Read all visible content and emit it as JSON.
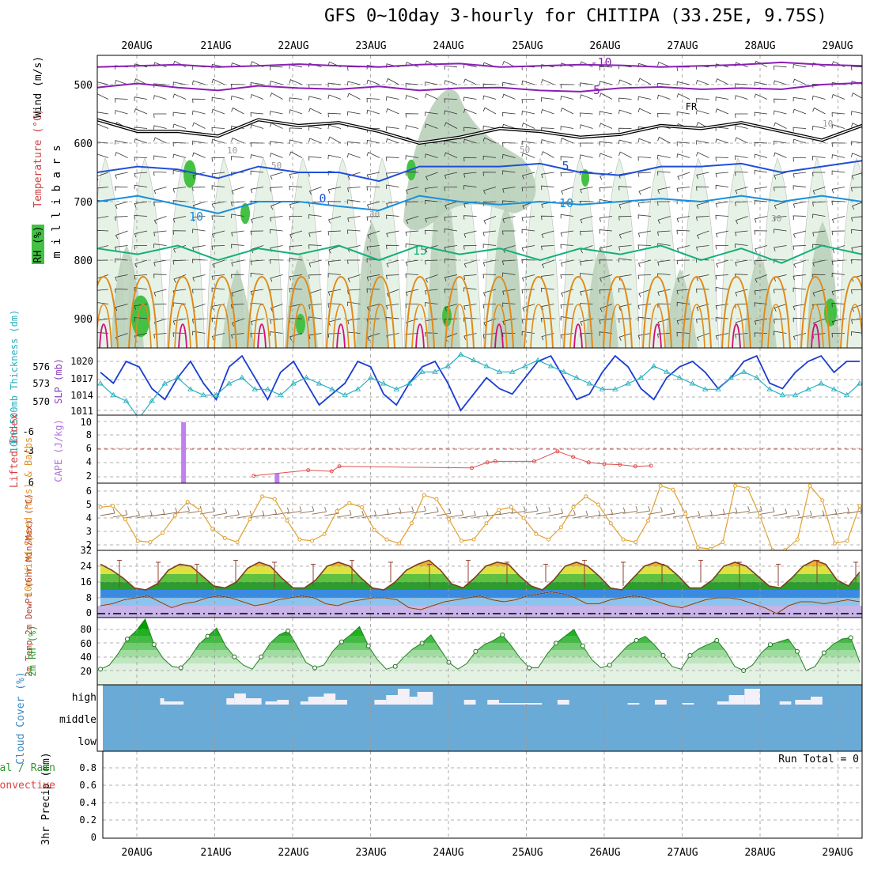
{
  "title": "GFS 0~10day 3-hourly for CHITIPA (33.25E, 9.75S)",
  "dates": [
    "20AUG",
    "21AUG",
    "22AUG",
    "23AUG",
    "24AUG",
    "25AUG",
    "26AUG",
    "27AUG",
    "28AUG",
    "29AUG"
  ],
  "colors": {
    "temp_neg": "#8a1fb5",
    "temp_5": "#1f4fd8",
    "temp_10": "#1a8fdc",
    "temp_15": "#14b07a",
    "temp_warm": "#e08a1a",
    "temp_hot": "#d0107a",
    "rh_light": "#e6f2e6",
    "rh_mid": "#b9d0b9",
    "rh_dark": "#7fbf7f",
    "rh_green": "#44c044",
    "slp": "#1a3cd0",
    "thickness": "#2ab0c0",
    "cape": "#c080f0",
    "lifted": "#e05050",
    "wind10": "#e0a030",
    "barb": "#806040",
    "cloud": "#6aaad6",
    "cloud_gap": "#f4f0f8"
  },
  "chart_data": [
    {
      "panel": "upper-air",
      "type": "contour",
      "ylabel": "m i l l i b a r s",
      "side_labels": [
        "Wind (m/s)",
        "Temperature (°C)",
        "RH (%)"
      ],
      "yticks": [
        500,
        600,
        700,
        800,
        900
      ],
      "ylim": [
        450,
        950
      ],
      "temperature_contour_labels": [
        "-10",
        "-5",
        "FR",
        "5",
        "10",
        "15",
        "0",
        "10"
      ],
      "rh_contour_labels": [
        "10",
        "30",
        "50",
        "50",
        "30",
        "10"
      ],
      "temperature_levels": [
        {
          "label": "-10",
          "p": [
            470,
            468,
            466,
            470,
            468,
            465,
            468,
            470,
            466,
            464,
            470,
            468,
            466,
            467,
            470,
            468,
            466,
            462,
            466,
            468
          ]
        },
        {
          "label": "-5",
          "p": [
            505,
            498,
            505,
            510,
            502,
            506,
            508,
            503,
            510,
            506,
            505,
            510,
            512,
            506,
            504,
            508,
            506,
            508,
            500,
            497
          ]
        },
        {
          "label": "FR",
          "p": [
            560,
            580,
            580,
            588,
            560,
            570,
            565,
            580,
            600,
            590,
            575,
            580,
            590,
            585,
            570,
            575,
            565,
            580,
            595,
            570
          ]
        },
        {
          "label": "5",
          "p": [
            650,
            640,
            645,
            660,
            640,
            650,
            650,
            665,
            640,
            640,
            640,
            635,
            650,
            655,
            640,
            640,
            635,
            650,
            640,
            630
          ]
        },
        {
          "label": "10",
          "p": [
            700,
            690,
            705,
            720,
            700,
            700,
            708,
            715,
            690,
            700,
            705,
            700,
            705,
            700,
            695,
            700,
            690,
            700,
            690,
            700
          ]
        },
        {
          "label": "15",
          "p": [
            780,
            790,
            775,
            800,
            780,
            790,
            775,
            800,
            775,
            790,
            780,
            800,
            780,
            790,
            775,
            800,
            780,
            805,
            775,
            790
          ]
        }
      ]
    },
    {
      "panel": "slp-thickness",
      "type": "line",
      "ylabel_left": "1000-500mb Thickness (dm)",
      "ylabel_right": "SLP (mb)",
      "left_ticks": [
        576,
        573,
        570
      ],
      "right_ticks": [
        1020,
        1017,
        1014,
        1011
      ],
      "series": [
        {
          "name": "SLP",
          "values": [
            1018,
            1016,
            1020,
            1019,
            1015,
            1013,
            1017,
            1020,
            1016,
            1013,
            1019,
            1021,
            1017,
            1013,
            1018,
            1020,
            1016,
            1012,
            1014,
            1016,
            1020,
            1019,
            1014,
            1012,
            1016,
            1019,
            1020,
            1016,
            1011,
            1014,
            1017,
            1015,
            1014,
            1017,
            1020,
            1021,
            1017,
            1013,
            1014,
            1018,
            1021,
            1019,
            1015,
            1013,
            1017,
            1019,
            1020,
            1018,
            1015,
            1017,
            1020,
            1021,
            1016,
            1015,
            1018,
            1020,
            1021,
            1018,
            1020,
            1020
          ]
        },
        {
          "name": "Thickness",
          "values": [
            573,
            571,
            570,
            567,
            570,
            573,
            574,
            572,
            571,
            571,
            573,
            574,
            572,
            572,
            571,
            573,
            574,
            573,
            572,
            571,
            572,
            574,
            573,
            572,
            573,
            575,
            575,
            576,
            578,
            577,
            576,
            575,
            575,
            576,
            577,
            576,
            575,
            574,
            573,
            572,
            572,
            573,
            574,
            576,
            575,
            574,
            573,
            572,
            572,
            574,
            575,
            574,
            572,
            571,
            571,
            572,
            573,
            572,
            571,
            573
          ]
        }
      ]
    },
    {
      "panel": "cape-lifted",
      "type": "bar",
      "ylabel_left": "Lifted Index",
      "ylabel_right": "CAPE (J/kg)",
      "left_ticks": [
        "-6",
        "-3",
        "0",
        "3",
        "6"
      ],
      "right_ticks": [
        "10",
        "8",
        "6",
        "4",
        "2"
      ],
      "cape_bars": [
        {
          "day": 0.6,
          "value": 10
        },
        {
          "day": 1.8,
          "value": 1.6
        }
      ],
      "lifted_index": [
        [
          1.5,
          6.2
        ],
        [
          2.2,
          5.2
        ],
        [
          2.5,
          5.4
        ],
        [
          2.6,
          4.5
        ],
        [
          4.3,
          4.8
        ],
        [
          4.5,
          3.8
        ],
        [
          4.6,
          3.6
        ],
        [
          5.1,
          3.6
        ],
        [
          5.4,
          1.8
        ],
        [
          5.6,
          2.8
        ],
        [
          5.8,
          3.8
        ],
        [
          6.0,
          4.1
        ],
        [
          6.2,
          4.2
        ],
        [
          6.4,
          4.5
        ],
        [
          6.6,
          4.4
        ]
      ]
    },
    {
      "panel": "wind10m",
      "type": "line",
      "ylabel": "10m Wind Speed (m/s) & Barbs",
      "yticks": [
        6,
        5,
        4,
        3,
        2
      ],
      "values": [
        4.8,
        4.9,
        3.9,
        2.3,
        2.2,
        2.9,
        4.2,
        5.2,
        4.6,
        3.2,
        2.5,
        2.2,
        3.9,
        5.6,
        5.4,
        3.8,
        2.4,
        2.3,
        2.8,
        4.5,
        5.1,
        4.8,
        3.1,
        2.4,
        2.1,
        3.6,
        5.7,
        5.4,
        3.9,
        2.3,
        2.4,
        3.6,
        4.6,
        4.8,
        4.0,
        2.8,
        2.4,
        3.3,
        4.8,
        5.6,
        5.0,
        3.6,
        2.4,
        2.2,
        3.8,
        6.4,
        6.1,
        4.3,
        1.8,
        1.7,
        2.2,
        6.4,
        6.2,
        4.1,
        1.6,
        1.6,
        2.4,
        6.4,
        5.3,
        2.1,
        2.3,
        4.9
      ]
    },
    {
      "panel": "temperature",
      "type": "area",
      "ylabel": "2m Temp 2m DewPt (6hr Min/Max) (°C)",
      "yticks": [
        32,
        24,
        16,
        8,
        0
      ],
      "temp": [
        25,
        22,
        18,
        13,
        12,
        15,
        22,
        25,
        24,
        19,
        14,
        13,
        16,
        23,
        26,
        24,
        18,
        13,
        13,
        17,
        24,
        26,
        24,
        18,
        13,
        12,
        16,
        22,
        25,
        27,
        22,
        15,
        13,
        18,
        24,
        26,
        25,
        19,
        14,
        12,
        17,
        24,
        26,
        24,
        19,
        13,
        12,
        18,
        24,
        26,
        24,
        19,
        13,
        13,
        17,
        24,
        26,
        24,
        19,
        14,
        13,
        18,
        24,
        27,
        25,
        17,
        14,
        21
      ],
      "dewpoint": [
        4,
        5,
        7,
        8,
        9,
        6,
        3,
        5,
        6,
        8,
        9,
        8,
        6,
        4,
        5,
        7,
        8,
        9,
        8,
        5,
        4,
        6,
        7,
        8,
        8,
        7,
        3,
        2,
        4,
        6,
        7,
        8,
        9,
        7,
        6,
        7,
        9,
        10,
        11,
        10,
        8,
        5,
        5,
        7,
        8,
        9,
        8,
        6,
        4,
        3,
        5,
        7,
        8,
        8,
        7,
        5,
        3,
        0,
        4,
        6,
        6,
        5,
        6,
        7,
        6
      ]
    },
    {
      "panel": "rh2m",
      "type": "area",
      "ylabel": "2m RH (%)",
      "yticks": [
        80,
        60,
        40,
        20
      ],
      "values": [
        22,
        28,
        45,
        66,
        78,
        95,
        58,
        38,
        26,
        24,
        38,
        58,
        70,
        82,
        56,
        40,
        28,
        22,
        40,
        60,
        72,
        78,
        56,
        32,
        24,
        28,
        48,
        62,
        72,
        84,
        56,
        36,
        22,
        26,
        40,
        52,
        60,
        72,
        52,
        32,
        22,
        30,
        48,
        58,
        64,
        72,
        56,
        38,
        24,
        24,
        44,
        60,
        70,
        80,
        56,
        36,
        24,
        28,
        42,
        56,
        64,
        70,
        58,
        42,
        26,
        22,
        42,
        52,
        58,
        64,
        48,
        26,
        20,
        28,
        46,
        58,
        62,
        66,
        48,
        20,
        26,
        46,
        58,
        66,
        68,
        32
      ]
    },
    {
      "panel": "cloud",
      "type": "bar",
      "ylabel": "Cloud Cover (%)",
      "levels": [
        "high",
        "middle",
        "low"
      ],
      "high_gaps": [
        [
          0.3,
          0.35,
          4
        ],
        [
          0.35,
          0.6,
          2
        ],
        [
          1.15,
          1.25,
          4
        ],
        [
          1.25,
          1.4,
          7
        ],
        [
          1.4,
          1.6,
          4
        ],
        [
          1.65,
          1.8,
          2
        ],
        [
          1.8,
          1.95,
          3
        ],
        [
          2.1,
          2.2,
          2
        ],
        [
          2.2,
          2.4,
          5
        ],
        [
          2.4,
          2.55,
          7
        ],
        [
          2.55,
          2.7,
          3
        ],
        [
          3.05,
          3.2,
          3
        ],
        [
          3.2,
          3.35,
          6
        ],
        [
          3.35,
          3.5,
          10
        ],
        [
          3.5,
          3.6,
          5
        ],
        [
          3.6,
          3.8,
          8
        ],
        [
          4.2,
          4.35,
          3
        ],
        [
          4.5,
          4.65,
          3
        ],
        [
          4.65,
          5.2,
          1
        ],
        [
          5.4,
          5.55,
          3
        ],
        [
          6.3,
          6.45,
          1
        ],
        [
          6.65,
          6.8,
          3
        ],
        [
          7.0,
          7.15,
          1
        ],
        [
          7.45,
          7.6,
          2
        ],
        [
          7.6,
          7.8,
          6
        ],
        [
          7.8,
          8.0,
          10
        ],
        [
          8.25,
          8.4,
          2
        ],
        [
          8.45,
          8.65,
          3
        ],
        [
          8.65,
          8.8,
          5
        ]
      ]
    },
    {
      "panel": "precip",
      "type": "bar",
      "ylabel": "3hr Precip (mm)",
      "side_labels": [
        "Total / Rain",
        "Convective"
      ],
      "yticks": [
        "0.8",
        "0.6",
        "0.4",
        "0.2",
        "0"
      ],
      "run_total_label": "Run Total = 0",
      "values": []
    }
  ]
}
